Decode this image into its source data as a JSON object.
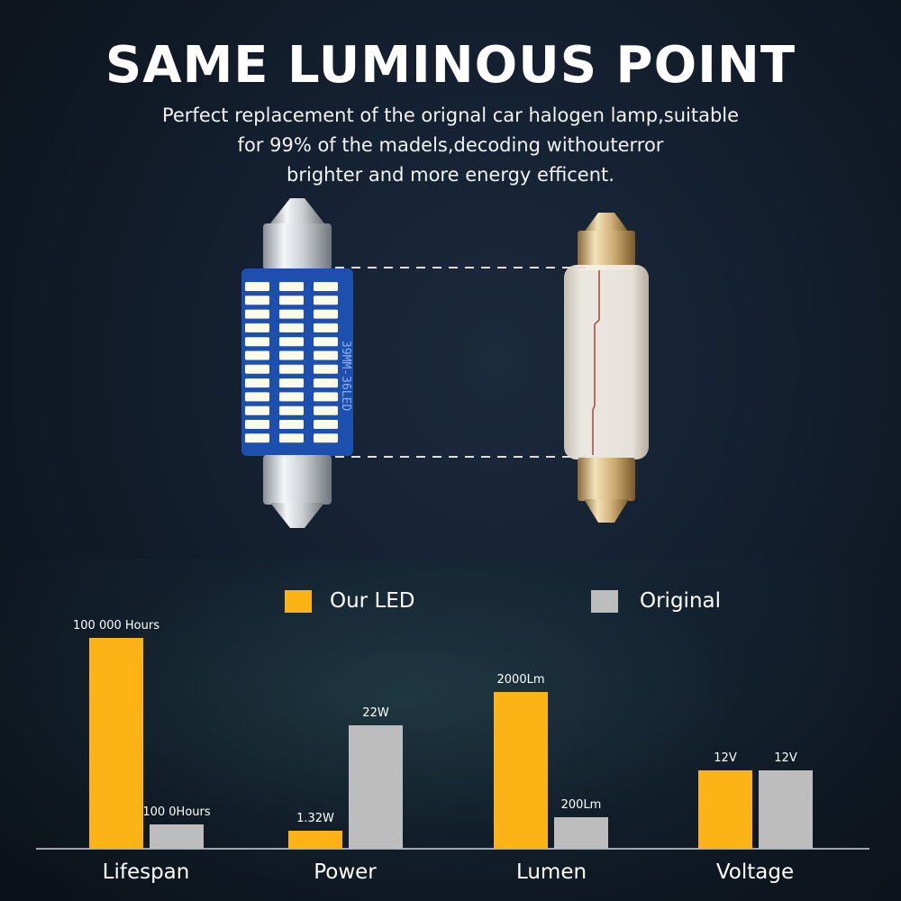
{
  "header": {
    "title": "SAME LUMINOUS POINT",
    "subtitle_lines": [
      "Perfect replacement of the orignal car halogen lamp,suitable",
      "for 99% of the madels,decoding withouterror",
      "brighter and more energy efficent."
    ]
  },
  "product": {
    "led_marking": "39MM-36LED",
    "led_count": 36
  },
  "colors": {
    "our_led": "#fcb316",
    "original": "#bdbdbd",
    "pcb": "#1d4fae"
  },
  "chart_data": {
    "type": "bar",
    "categories": [
      "Lifespan",
      "Power",
      "Lumen",
      "Voltage"
    ],
    "legend": {
      "placement": "top-center"
    },
    "grid": false,
    "series": [
      {
        "name": "Our LED",
        "color": "#fcb316",
        "values": [
          100000,
          1.32,
          2000,
          12
        ],
        "labels": [
          "100 000 Hours",
          "1.32W",
          "2000Lm",
          "12V"
        ]
      },
      {
        "name": "Original",
        "color": "#bdbdbd",
        "values": [
          1000,
          22,
          200,
          12
        ],
        "labels": [
          "100 0Hours",
          "22W",
          "200Lm",
          "12V"
        ]
      }
    ]
  }
}
